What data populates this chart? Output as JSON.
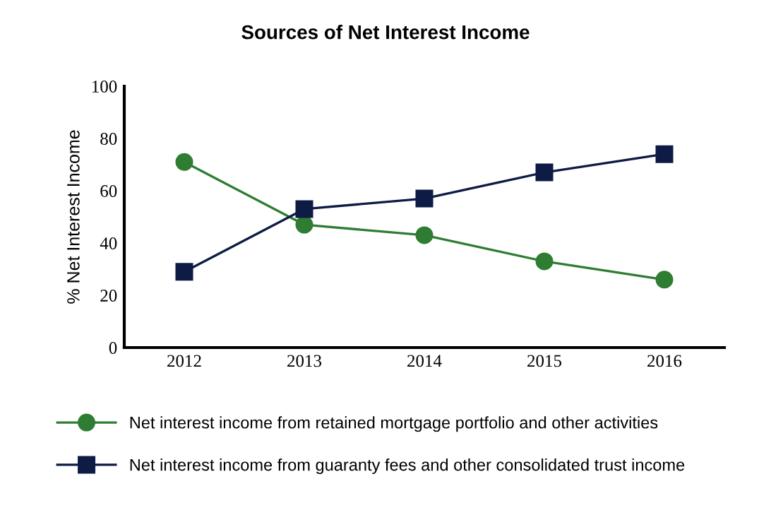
{
  "chart_data": {
    "type": "line",
    "title": "Sources of Net Interest Income",
    "ylabel": "% Net Interest Income",
    "categories": [
      "2012",
      "2013",
      "2014",
      "2015",
      "2016"
    ],
    "series": [
      {
        "name": "Net interest income from retained mortgage portfolio and other activities",
        "color": "#2e7d32",
        "marker": "circle",
        "values": [
          71,
          47,
          43,
          33,
          26
        ]
      },
      {
        "name": "Net interest income from guaranty fees and other consolidated trust income",
        "color": "#0d1b45",
        "marker": "square",
        "values": [
          29,
          53,
          57,
          67,
          74
        ]
      }
    ],
    "ylim": [
      0,
      100
    ],
    "yticks": [
      0,
      20,
      40,
      60,
      80,
      100
    ],
    "grid": false,
    "legend": "bottom",
    "line_style": "solid"
  }
}
